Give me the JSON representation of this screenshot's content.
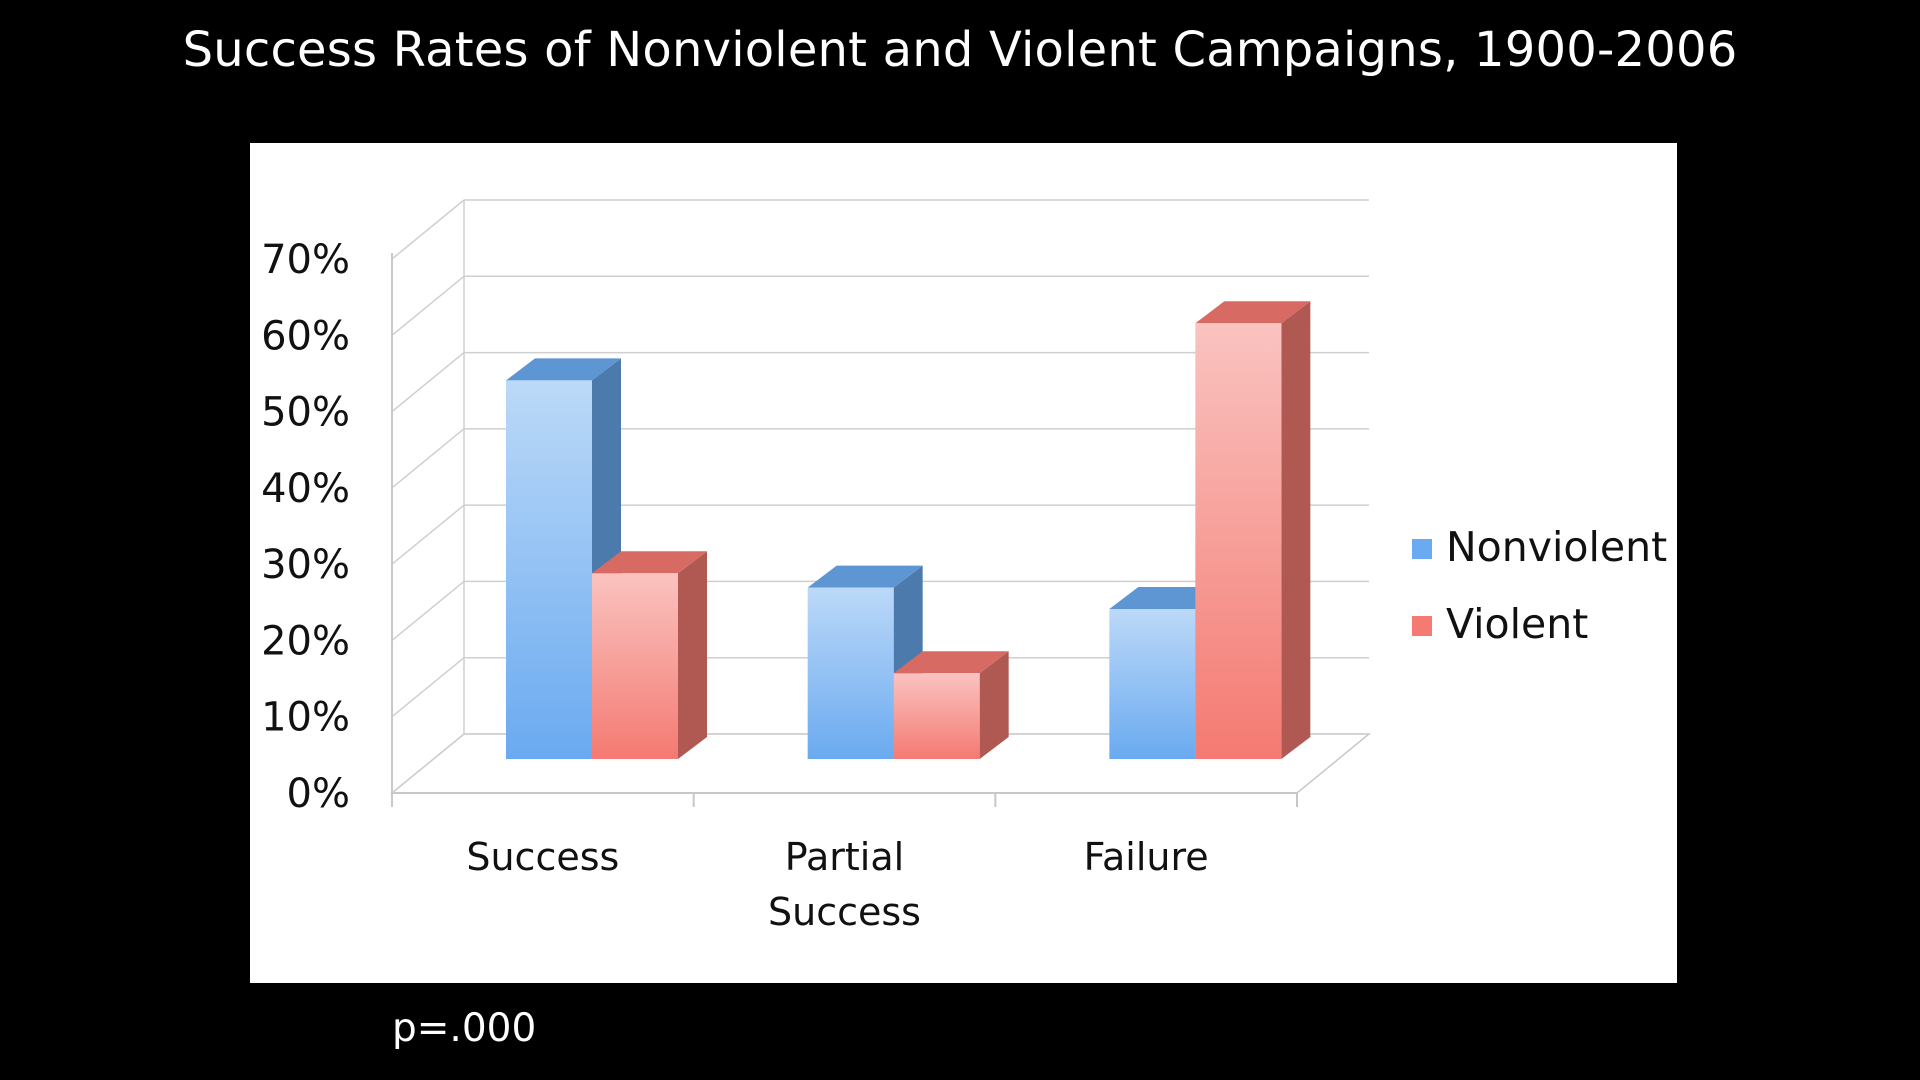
{
  "slide": {
    "footnote": "p=.000",
    "background": "#000000"
  },
  "chart_data": {
    "type": "bar",
    "style": "3d-clustered-column",
    "title": "Success Rates of Nonviolent and Violent Campaigns, 1900-2006",
    "categories": [
      [
        "Success"
      ],
      [
        "Partial",
        "Success"
      ],
      [
        "Failure"
      ]
    ],
    "series": [
      {
        "name": "Nonviolent",
        "values": [
          53,
          24,
          21
        ],
        "color": "#6aaaf0"
      },
      {
        "name": "Violent",
        "values": [
          26,
          12,
          61
        ],
        "color": "#f47a72"
      }
    ],
    "y_ticks": [
      "0%",
      "10%",
      "20%",
      "30%",
      "40%",
      "50%",
      "60%",
      "70%"
    ],
    "ylim": [
      0,
      70
    ],
    "y_unit": "%",
    "grid": true,
    "legend": "right",
    "xlabel": "",
    "ylabel": ""
  }
}
